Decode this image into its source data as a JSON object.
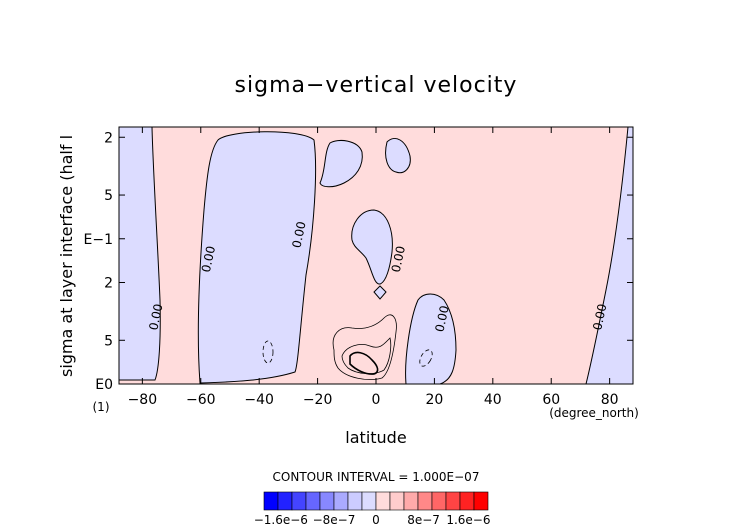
{
  "chart_data": {
    "type": "contour",
    "title": "sigma−vertical velocity",
    "xlabel": "latitude",
    "xunit": "(degree_north)",
    "ylabel": "sigma at layer interface (half l",
    "ylabel_note": "(1)",
    "x_ticks": [
      "−80",
      "−60",
      "−40",
      "−20",
      "0",
      "20",
      "40",
      "60",
      "80"
    ],
    "x_tick_values": [
      -80,
      -60,
      -40,
      -20,
      0,
      20,
      40,
      60,
      80
    ],
    "xlim": [
      -88,
      88
    ],
    "y_ticks": [
      "2",
      "5",
      "E−1",
      "2",
      "5",
      "E0"
    ],
    "y_tick_values": [
      0.02,
      0.05,
      0.1,
      0.2,
      0.5,
      1.0
    ],
    "yscale": "log",
    "ylim": [
      1.0,
      0.017
    ],
    "contour_labels": [
      {
        "text": "0.00",
        "x": -74,
        "y": 0.35
      },
      {
        "text": "0.00",
        "x": -56,
        "y": 0.14
      },
      {
        "text": "0.00",
        "x": -25,
        "y": 0.095
      },
      {
        "text": "0.00",
        "x": 9,
        "y": 0.14
      },
      {
        "text": "0.00",
        "x": 24,
        "y": 0.36
      },
      {
        "text": "0.00",
        "x": 78,
        "y": 0.35
      }
    ],
    "contour_interval_text": "CONTOUR INTERVAL = 1.000E−07",
    "colorbar": {
      "colors_negative": [
        "#0000ff",
        "#2222ff",
        "#4444ff",
        "#6666ff",
        "#8888ff",
        "#aaaaff",
        "#ccccff",
        "#dcdcff"
      ],
      "colors_positive": [
        "#ffdcdc",
        "#ffcccc",
        "#ffaaaa",
        "#ff8888",
        "#ff6666",
        "#ff4444",
        "#ff2222",
        "#ff0000"
      ],
      "tick_labels": [
        "−1.6e−6",
        "−8e−7",
        "0",
        "8e−7",
        "1.6e−6"
      ]
    },
    "fill_negative": "#dcdcff",
    "fill_positive": "#ffdcdc"
  }
}
